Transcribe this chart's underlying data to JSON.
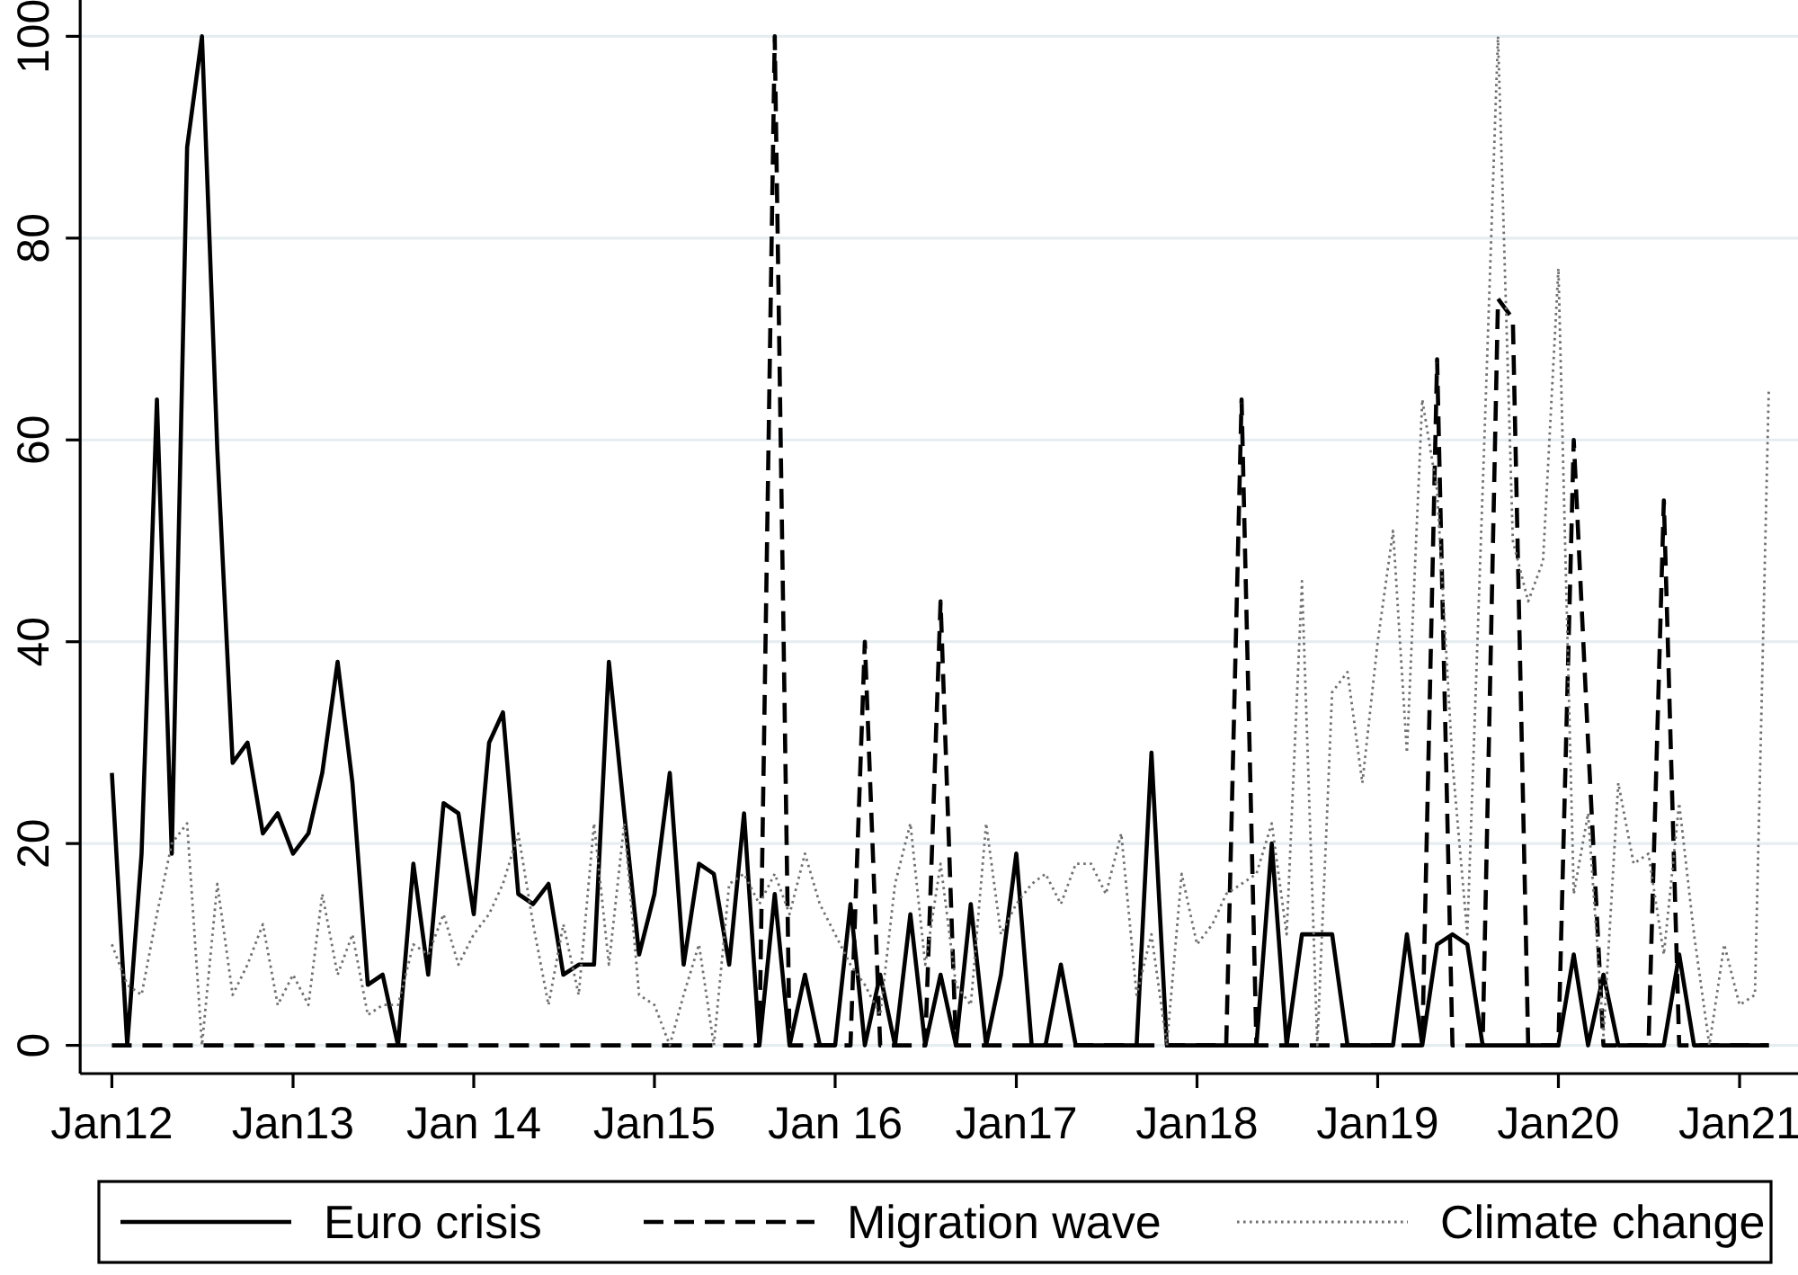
{
  "chart_data": {
    "type": "line",
    "x": [
      "2012-01",
      "2012-02",
      "2012-03",
      "2012-04",
      "2012-05",
      "2012-06",
      "2012-07",
      "2012-08",
      "2012-09",
      "2012-10",
      "2012-11",
      "2012-12",
      "2013-01",
      "2013-02",
      "2013-03",
      "2013-04",
      "2013-05",
      "2013-06",
      "2013-07",
      "2013-08",
      "2013-09",
      "2013-10",
      "2013-11",
      "2013-12",
      "2014-01",
      "2014-02",
      "2014-03",
      "2014-04",
      "2014-05",
      "2014-06",
      "2014-07",
      "2014-08",
      "2014-09",
      "2014-10",
      "2014-11",
      "2014-12",
      "2015-01",
      "2015-02",
      "2015-03",
      "2015-04",
      "2015-05",
      "2015-06",
      "2015-07",
      "2015-08",
      "2015-09",
      "2015-10",
      "2015-11",
      "2015-12",
      "2016-01",
      "2016-02",
      "2016-03",
      "2016-04",
      "2016-05",
      "2016-06",
      "2016-07",
      "2016-08",
      "2016-09",
      "2016-10",
      "2016-11",
      "2016-12",
      "2017-01",
      "2017-02",
      "2017-03",
      "2017-04",
      "2017-05",
      "2017-06",
      "2017-07",
      "2017-08",
      "2017-09",
      "2017-10",
      "2017-11",
      "2017-12",
      "2018-01",
      "2018-02",
      "2018-03",
      "2018-04",
      "2018-05",
      "2018-06",
      "2018-07",
      "2018-08",
      "2018-09",
      "2018-10",
      "2018-11",
      "2018-12",
      "2019-01",
      "2019-02",
      "2019-03",
      "2019-04",
      "2019-05",
      "2019-06",
      "2019-07",
      "2019-08",
      "2019-09",
      "2019-10",
      "2019-11",
      "2019-12",
      "2020-01",
      "2020-02",
      "2020-03",
      "2020-04",
      "2020-05",
      "2020-06",
      "2020-07",
      "2020-08",
      "2020-09",
      "2020-10",
      "2020-11",
      "2020-12",
      "2021-01",
      "2021-02",
      "2021-03"
    ],
    "series": [
      {
        "name": "Euro crisis",
        "color": "#000000",
        "line_style": "solid",
        "values": [
          27,
          0,
          19,
          64,
          19,
          89,
          100,
          59,
          28,
          30,
          21,
          23,
          19,
          21,
          27,
          38,
          26,
          6,
          7,
          0,
          18,
          7,
          24,
          23,
          13,
          30,
          33,
          15,
          14,
          16,
          7,
          8,
          8,
          38,
          23,
          9,
          15,
          27,
          8,
          18,
          17,
          8,
          23,
          0,
          15,
          0,
          7,
          0,
          0,
          14,
          0,
          7,
          0,
          13,
          0,
          7,
          0,
          14,
          0,
          7,
          19,
          0,
          0,
          8,
          0,
          0,
          0,
          0,
          0,
          29,
          0,
          0,
          0,
          0,
          0,
          0,
          0,
          20,
          0,
          11,
          11,
          11,
          0,
          0,
          0,
          0,
          11,
          0,
          10,
          11,
          10,
          0,
          0,
          0,
          0,
          0,
          0,
          9,
          0,
          7,
          0,
          0,
          0,
          0,
          9,
          0,
          0,
          0,
          0,
          0,
          0
        ]
      },
      {
        "name": "Migration wave",
        "color": "#000000",
        "line_style": "dashed",
        "values": [
          0,
          0,
          0,
          0,
          0,
          0,
          0,
          0,
          0,
          0,
          0,
          0,
          0,
          0,
          0,
          0,
          0,
          0,
          0,
          0,
          0,
          0,
          0,
          0,
          0,
          0,
          0,
          0,
          0,
          0,
          0,
          0,
          0,
          0,
          0,
          0,
          0,
          0,
          0,
          0,
          0,
          0,
          0,
          0,
          100,
          0,
          0,
          0,
          0,
          0,
          40,
          0,
          0,
          0,
          0,
          44,
          0,
          0,
          0,
          0,
          0,
          0,
          0,
          0,
          0,
          0,
          0,
          0,
          0,
          0,
          0,
          0,
          0,
          0,
          0,
          64,
          0,
          0,
          0,
          0,
          0,
          0,
          0,
          0,
          0,
          0,
          0,
          0,
          68,
          0,
          0,
          0,
          74,
          72,
          0,
          0,
          0,
          60,
          30,
          0,
          0,
          0,
          0,
          54,
          0,
          0,
          0,
          0,
          0,
          0,
          0
        ]
      },
      {
        "name": "Climate change",
        "color": "#707070",
        "line_style": "dotted",
        "values": [
          10,
          6,
          5,
          13,
          20,
          22,
          0,
          16,
          5,
          8,
          12,
          4,
          7,
          4,
          15,
          7,
          11,
          3,
          4,
          4,
          10,
          9,
          13,
          8,
          11,
          13,
          16,
          21,
          12,
          4,
          12,
          5,
          22,
          8,
          22,
          5,
          4,
          0,
          5,
          10,
          0,
          16,
          17,
          14,
          17,
          13,
          19,
          14,
          11,
          8,
          6,
          3,
          16,
          22,
          8,
          18,
          6,
          4,
          22,
          11,
          14,
          16,
          17,
          14,
          18,
          18,
          15,
          21,
          5,
          11,
          0,
          17,
          10,
          12,
          15,
          16,
          17,
          22,
          11,
          46,
          0,
          35,
          37,
          26,
          40,
          51,
          29,
          64,
          55,
          28,
          11,
          55,
          100,
          50,
          44,
          48,
          77,
          15,
          23,
          1,
          26,
          18,
          19,
          9,
          24,
          11,
          0,
          10,
          4,
          5,
          65
        ]
      }
    ],
    "xlim": [
      "2011-10-29",
      "2021-04-29"
    ],
    "xticks": [
      {
        "value": "2012-01",
        "label": "Jan12"
      },
      {
        "value": "2013-01",
        "label": "Jan13"
      },
      {
        "value": "2014-01",
        "label": "Jan 14"
      },
      {
        "value": "2015-01",
        "label": "Jan15"
      },
      {
        "value": "2016-01",
        "label": "Jan 16"
      },
      {
        "value": "2017-01",
        "label": "Jan17"
      },
      {
        "value": "2018-01",
        "label": "Jan18"
      },
      {
        "value": "2019-01",
        "label": "Jan19"
      },
      {
        "value": "2020-01",
        "label": "Jan20"
      },
      {
        "value": "2021-01",
        "label": "Jan21"
      }
    ],
    "ylim": [
      -2.8,
      103.6
    ],
    "yticks": [
      0,
      20,
      40,
      60,
      80,
      100
    ],
    "grid": "y",
    "legend": "bottom"
  }
}
